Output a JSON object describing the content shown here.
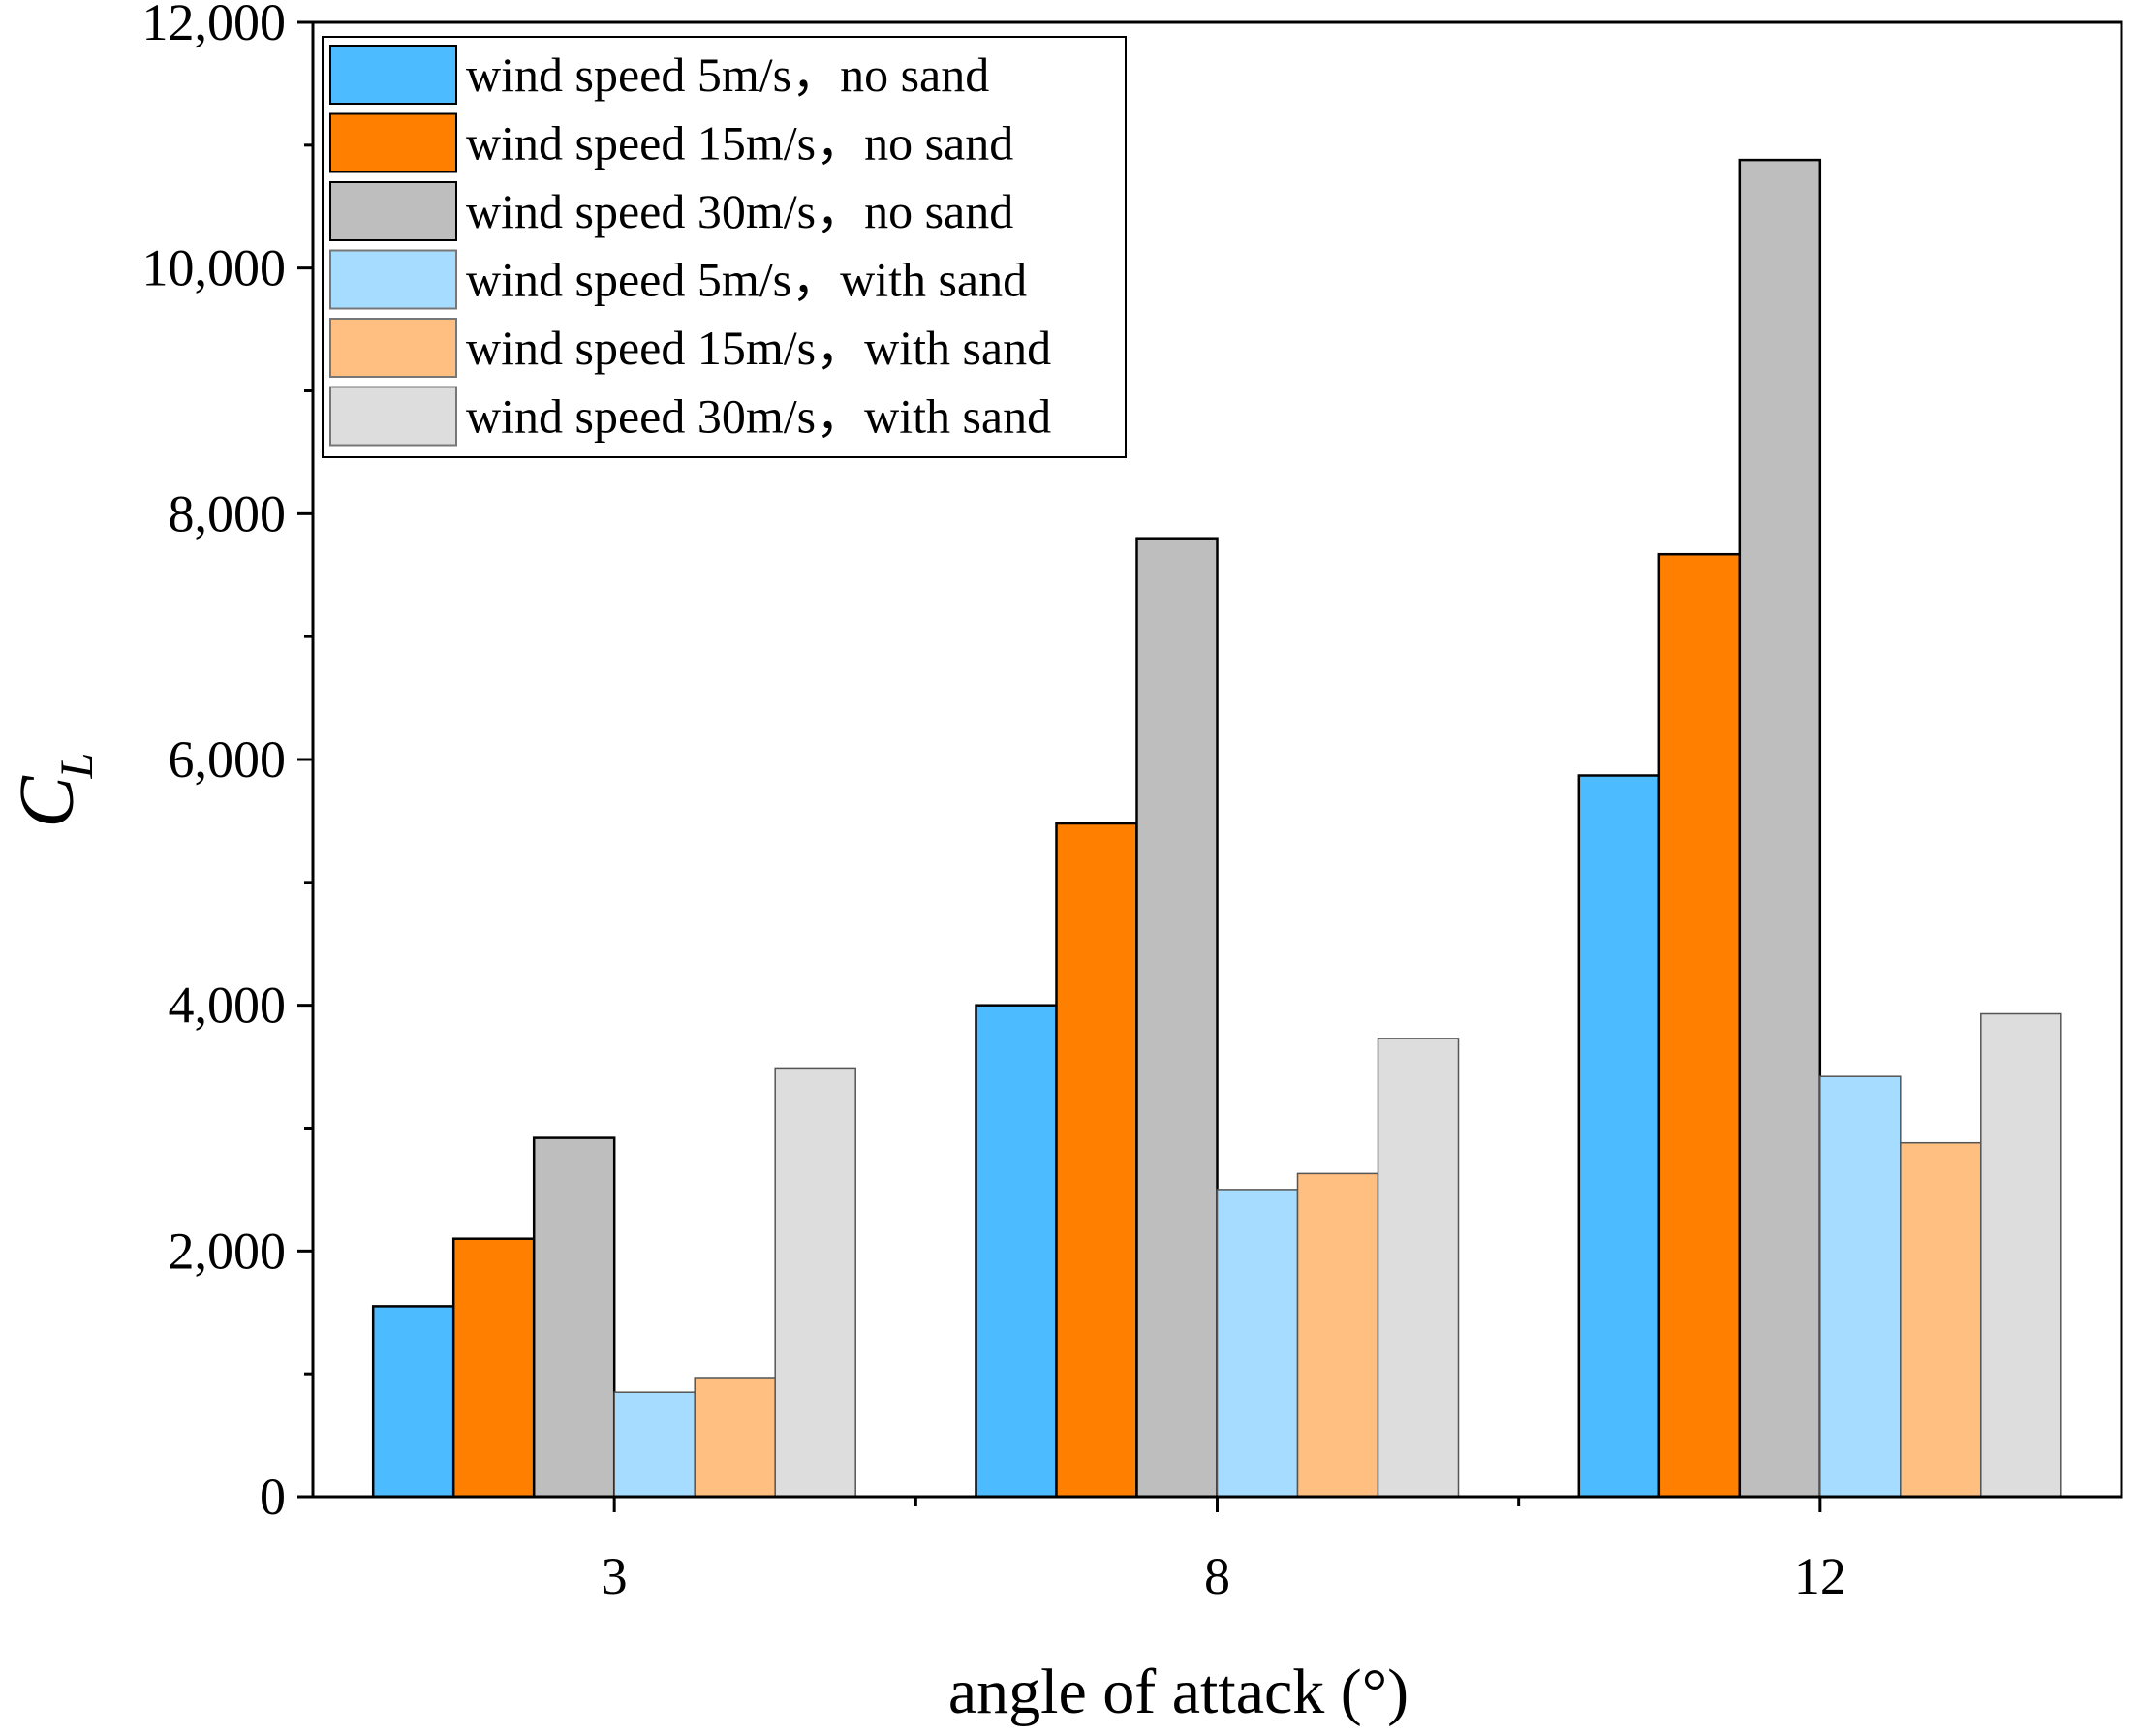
{
  "chart_data": {
    "type": "bar",
    "title": "",
    "xlabel": "angle of attack (°)",
    "ylabel": {
      "main": "C",
      "sub": "L"
    },
    "categories": [
      "3",
      "8",
      "12"
    ],
    "ylim": [
      0,
      12000
    ],
    "yticks": [
      0,
      2000,
      4000,
      6000,
      8000,
      10000,
      12000
    ],
    "ytick_labels": [
      "0",
      "2,000",
      "4,000",
      "6,000",
      "8,000",
      "10,000",
      "12,000"
    ],
    "legend_position": "top-left",
    "series": [
      {
        "name": "wind speed 5m/s，no sand",
        "color": "#4DBBFF",
        "values": [
          1550,
          4000,
          5870
        ]
      },
      {
        "name": "wind speed 15m/s，no sand",
        "color": "#FF7F00",
        "values": [
          2100,
          5480,
          7670
        ]
      },
      {
        "name": "wind speed 30m/s，no sand",
        "color": "#BEBEBE",
        "values": [
          2920,
          7800,
          10880
        ]
      },
      {
        "name": "wind speed 5m/s，with sand",
        "color": "#A6DCFF",
        "values": [
          850,
          2500,
          3420
        ]
      },
      {
        "name": "wind speed 15m/s，with sand",
        "color": "#FFBF80",
        "values": [
          970,
          2630,
          2880
        ]
      },
      {
        "name": "wind speed 30m/s，with sand",
        "color": "#DDDDDD",
        "values": [
          3490,
          3730,
          3930
        ]
      }
    ]
  }
}
